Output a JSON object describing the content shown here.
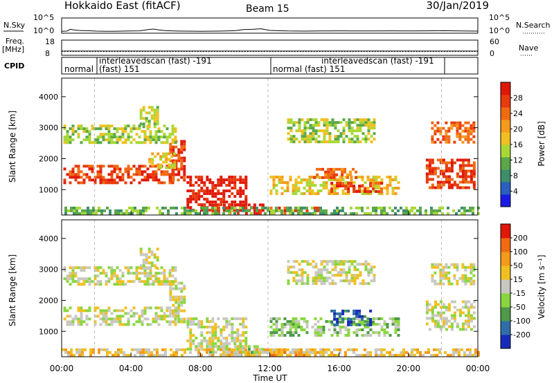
{
  "header": {
    "station": "Hokkaido East (fitACF)",
    "beam": "Beam 15",
    "date": "30/Jan/2019"
  },
  "chart_data": [
    {
      "type": "line",
      "panel": "noise",
      "left_label": "N.Sky",
      "right_label": "N.Search",
      "left_ticks": [
        "10^5",
        "10^0"
      ],
      "right_ticks": [
        "10^5",
        "10^0"
      ],
      "x_hours": [
        0,
        0.3,
        0.5,
        0.8,
        1.0,
        1.2,
        1.5,
        1.8,
        2.0,
        2.5,
        3.0,
        3.5,
        4.0,
        4.5,
        5.0,
        5.3,
        5.6,
        6.0,
        6.5,
        7.0,
        8.0,
        9.0,
        9.5,
        10.0,
        10.5,
        11.0,
        11.5,
        12.0,
        13.0,
        14.0,
        15.0,
        16.0,
        17.0,
        18.0,
        19.0,
        20.0,
        21.0,
        22.0,
        23.0,
        24.0
      ],
      "y_log": [
        0.2,
        0.25,
        0.9,
        0.6,
        0.5,
        0.45,
        0.4,
        0.3,
        0.25,
        0.2,
        0.2,
        0.25,
        0.3,
        0.35,
        0.8,
        1.0,
        0.7,
        0.4,
        0.3,
        0.25,
        0.2,
        0.25,
        0.3,
        0.4,
        0.8,
        0.9,
        1.1,
        0.5,
        0.3,
        0.25,
        0.3,
        0.35,
        0.3,
        0.3,
        0.35,
        0.3,
        0.35,
        0.4,
        0.3,
        0.25
      ]
    },
    {
      "type": "line",
      "panel": "frequency",
      "left_label": "Freq. [MHz]",
      "right_label": "Nave",
      "left_ticks": [
        "18",
        "8"
      ],
      "right_ticks": [
        "60",
        "0"
      ],
      "freq_mhz": 10.8,
      "nave": 15
    },
    {
      "type": "table",
      "panel": "cpid",
      "label": "CPID",
      "segments": [
        {
          "start": 0.0,
          "end": 1.9,
          "name": "normal"
        },
        {
          "start": 1.9,
          "end": 11.9,
          "name": "interleavedscan (fast) -191"
        },
        {
          "start": 1.9,
          "end": 11.9,
          "name": "(fast) 151"
        },
        {
          "start": 11.9,
          "end": 21.9,
          "name": "normal (fast) 151"
        },
        {
          "start": 11.9,
          "end": 21.9,
          "name": "interleavedscan (fast) -191"
        }
      ]
    },
    {
      "type": "heatmap",
      "panel": "power",
      "ylabel": "Slant Range [km]",
      "xlabel": "Time UT",
      "yticks": [
        1000,
        2000,
        3000,
        4000
      ],
      "ylim": [
        180,
        4600
      ],
      "xticks": [
        "00:00",
        "04:00",
        "08:00",
        "12:00",
        "16:00",
        "20:00",
        "00:00"
      ],
      "xlim_hours": [
        0,
        24
      ],
      "colorbar_label": "Power [dB]",
      "colorbar_ticks": [
        "4",
        "8",
        "12",
        "16",
        "20",
        "24",
        "28"
      ],
      "colors": [
        "#1a1ae6",
        "#2a5fbf",
        "#3c8f6a",
        "#5aa848",
        "#a8d836",
        "#f0c020",
        "#f59a1a",
        "#f06a12",
        "#e83a0c",
        "#e01808"
      ],
      "regions": [
        {
          "t0": 0.1,
          "t1": 6.8,
          "r0": 1200,
          "r1": 1800,
          "val": 8
        },
        {
          "t0": 6.2,
          "t1": 7.0,
          "r0": 1300,
          "r1": 2600,
          "val": 8
        },
        {
          "t0": 7.2,
          "t1": 10.6,
          "r0": 300,
          "r1": 1450,
          "val": 9
        },
        {
          "t0": 8.5,
          "t1": 11.6,
          "r0": 220,
          "r1": 550,
          "val": 9
        },
        {
          "t0": 12.0,
          "t1": 15.0,
          "r0": 200,
          "r1": 450,
          "val": 8
        },
        {
          "t0": 0.1,
          "t1": 6.5,
          "r0": 2500,
          "r1": 3100,
          "val": 4
        },
        {
          "t0": 4.5,
          "t1": 5.6,
          "r0": 3000,
          "r1": 3700,
          "val": 4
        },
        {
          "t0": 5.0,
          "t1": 6.5,
          "r0": 1700,
          "r1": 2200,
          "val": 5
        },
        {
          "t0": 12.0,
          "t1": 19.5,
          "r0": 850,
          "r1": 1450,
          "val": 5
        },
        {
          "t0": 15.5,
          "t1": 18.5,
          "r0": 950,
          "r1": 1250,
          "val": 8
        },
        {
          "t0": 14.5,
          "t1": 17.0,
          "r0": 1350,
          "r1": 1700,
          "val": 7
        },
        {
          "t0": 13.0,
          "t1": 18.0,
          "r0": 2500,
          "r1": 3300,
          "val": 4
        },
        {
          "t0": 21.0,
          "t1": 23.8,
          "r0": 1100,
          "r1": 2000,
          "val": 8
        },
        {
          "t0": 21.3,
          "t1": 23.8,
          "r0": 2500,
          "r1": 3200,
          "val": 7
        },
        {
          "t0": 0.0,
          "t1": 24.0,
          "r0": 200,
          "r1": 450,
          "val": 3
        }
      ]
    },
    {
      "type": "heatmap",
      "panel": "velocity",
      "ylabel": "Slant Range [km]",
      "xlabel": "Time UT",
      "yticks": [
        1000,
        2000,
        3000,
        4000
      ],
      "ylim": [
        180,
        4600
      ],
      "xticks": [
        "00:00",
        "04:00",
        "08:00",
        "12:00",
        "16:00",
        "20:00",
        "00:00"
      ],
      "xlim_hours": [
        0,
        24
      ],
      "colorbar_label": "Velocity [m s⁻¹]",
      "colorbar_ticks": [
        "200",
        "100",
        "50",
        "15",
        "-15",
        "-50",
        "-100",
        "-200"
      ],
      "colors": [
        "#1a2ab8",
        "#2f6ea8",
        "#4e9a48",
        "#8ad640",
        "#c8c8c0",
        "#f0c020",
        "#f59a1a",
        "#f06a12",
        "#e01808"
      ],
      "regions": [
        {
          "t0": 0.1,
          "t1": 6.8,
          "r0": 1200,
          "r1": 1800,
          "val": 4
        },
        {
          "t0": 6.2,
          "t1": 7.0,
          "r0": 1300,
          "r1": 2600,
          "val": 4
        },
        {
          "t0": 7.2,
          "t1": 10.6,
          "r0": 450,
          "r1": 1450,
          "val": 4
        },
        {
          "t0": 8.5,
          "t1": 11.6,
          "r0": 220,
          "r1": 550,
          "val": 3
        },
        {
          "t0": 12.0,
          "t1": 15.0,
          "r0": 200,
          "r1": 450,
          "val": 6
        },
        {
          "t0": 0.1,
          "t1": 6.5,
          "r0": 2500,
          "r1": 3100,
          "val": 4
        },
        {
          "t0": 4.5,
          "t1": 5.6,
          "r0": 3000,
          "r1": 3700,
          "val": 4
        },
        {
          "t0": 12.0,
          "t1": 19.5,
          "r0": 850,
          "r1": 1450,
          "val": 3
        },
        {
          "t0": 15.5,
          "t1": 18.0,
          "r0": 1200,
          "r1": 1700,
          "val": 1
        },
        {
          "t0": 13.0,
          "t1": 18.0,
          "r0": 2500,
          "r1": 3300,
          "val": 4
        },
        {
          "t0": 21.0,
          "t1": 23.8,
          "r0": 1100,
          "r1": 2000,
          "val": 4
        },
        {
          "t0": 21.3,
          "t1": 23.8,
          "r0": 2500,
          "r1": 3200,
          "val": 4
        },
        {
          "t0": 0.0,
          "t1": 24.0,
          "r0": 200,
          "r1": 450,
          "val": 5
        }
      ]
    }
  ]
}
